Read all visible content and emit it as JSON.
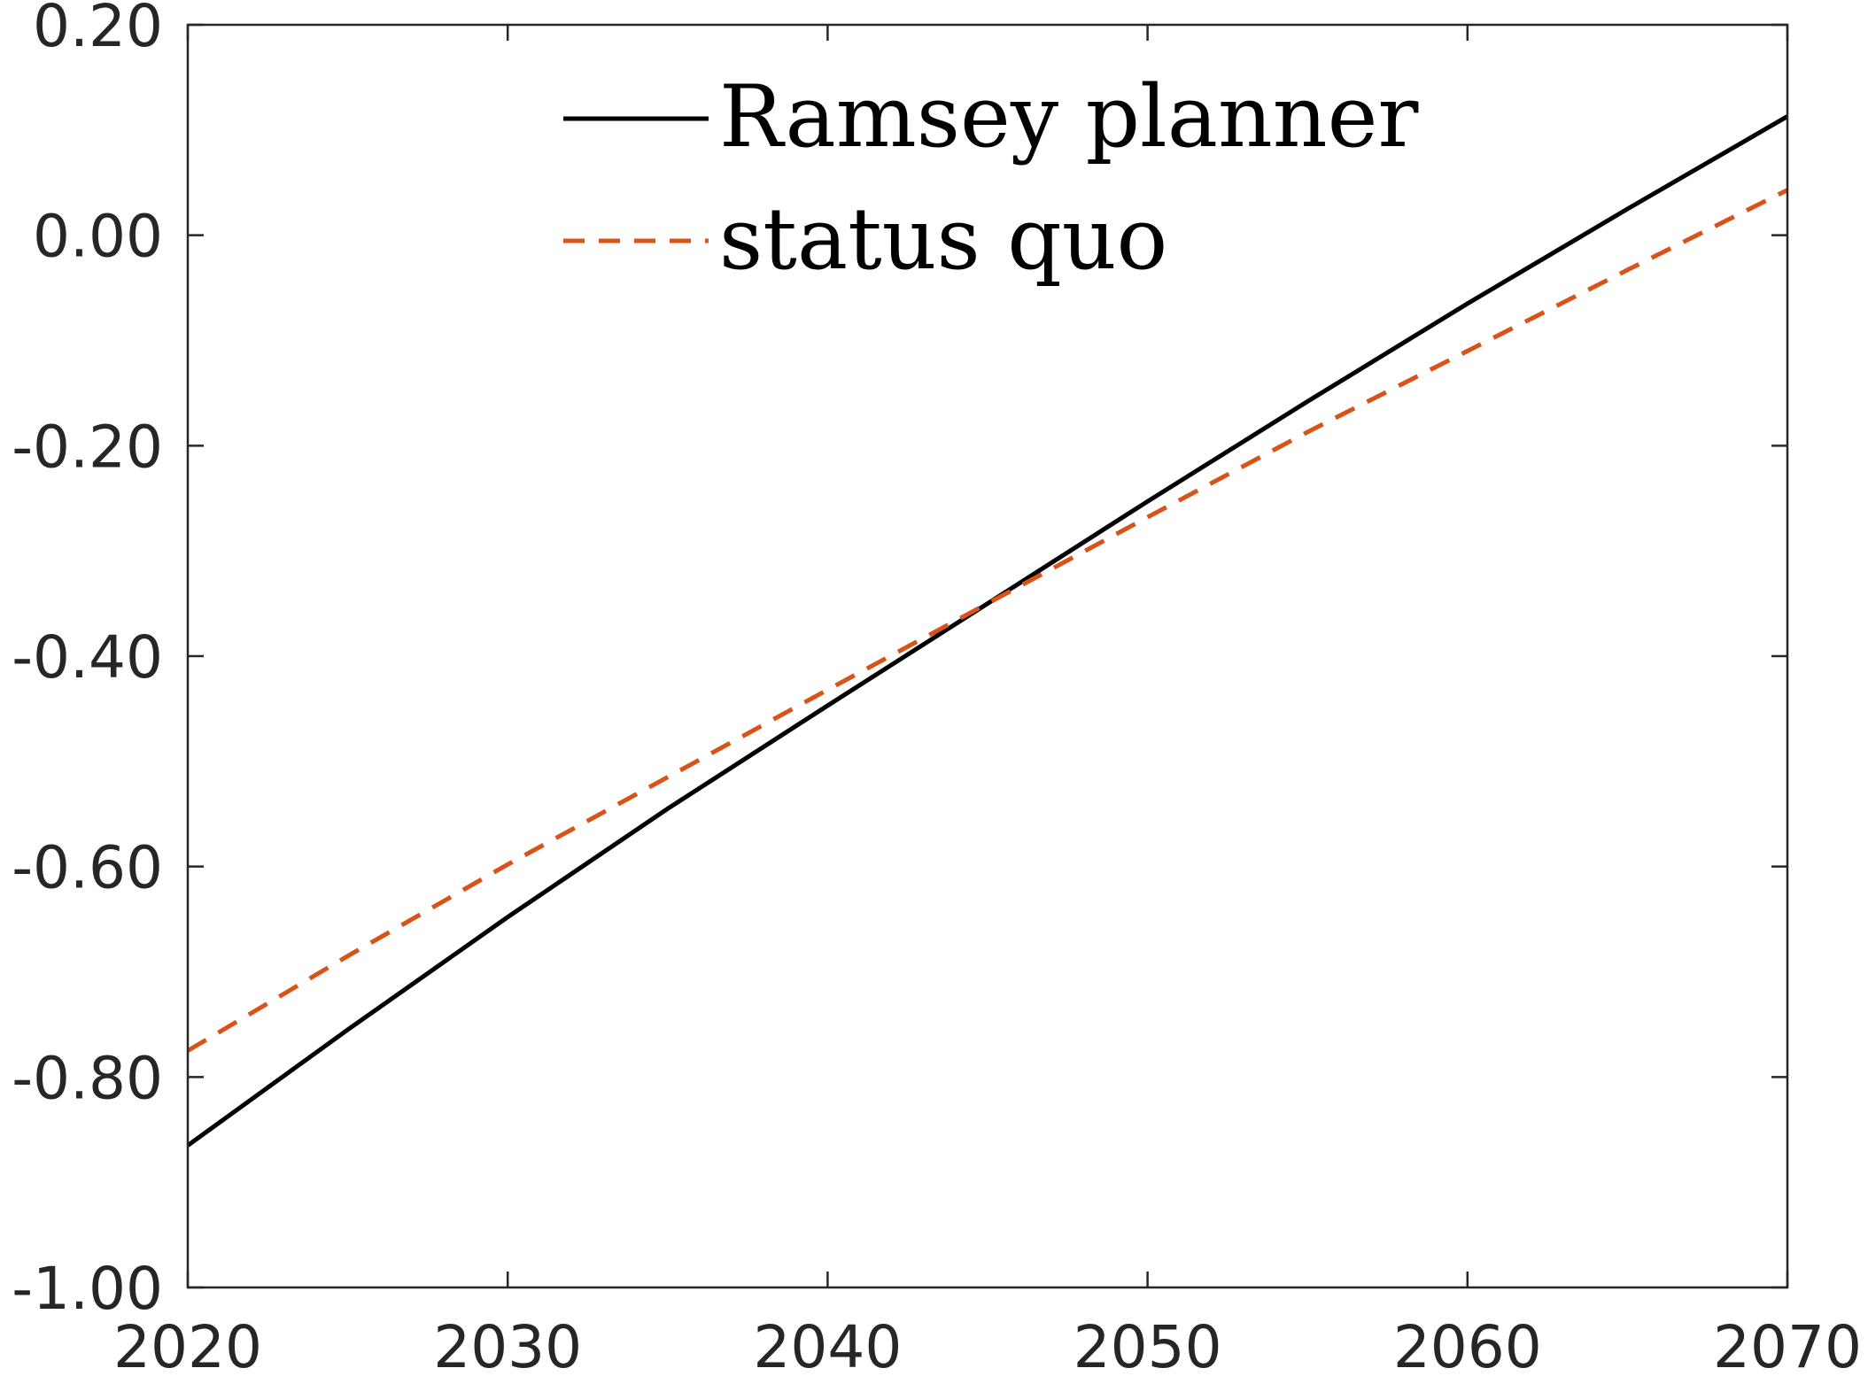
{
  "chart_data": {
    "type": "line",
    "title": "",
    "xlabel": "",
    "ylabel": "",
    "xlim": [
      2020,
      2070
    ],
    "ylim": [
      -1.0,
      0.2
    ],
    "x_ticks": [
      2020,
      2030,
      2040,
      2050,
      2060,
      2070
    ],
    "x_tick_labels": [
      "2020",
      "2030",
      "2040",
      "2050",
      "2060",
      "2070"
    ],
    "y_ticks": [
      -1.0,
      -0.8,
      -0.6,
      -0.4,
      -0.2,
      0.0,
      0.2
    ],
    "y_tick_labels": [
      "-1.00",
      "-0.80",
      "-0.60",
      "-0.40",
      "-0.20",
      "0.00",
      "0.20"
    ],
    "grid": false,
    "legend_position": "top-center",
    "series": [
      {
        "name": "Ramsey planner",
        "color": "#000000",
        "line_style": "solid",
        "x": [
          2020,
          2025,
          2030,
          2035,
          2040,
          2045,
          2050,
          2055,
          2060,
          2065,
          2070
        ],
        "y": [
          -0.865,
          -0.755,
          -0.648,
          -0.545,
          -0.447,
          -0.35,
          -0.253,
          -0.158,
          -0.065,
          0.025,
          0.113
        ]
      },
      {
        "name": "status quo",
        "color": "#d95319",
        "line_style": "dashed",
        "x": [
          2020,
          2025,
          2030,
          2035,
          2040,
          2045,
          2050,
          2055,
          2060,
          2065,
          2070
        ],
        "y": [
          -0.775,
          -0.685,
          -0.598,
          -0.515,
          -0.432,
          -0.35,
          -0.268,
          -0.187,
          -0.11,
          -0.033,
          0.043
        ]
      }
    ]
  }
}
